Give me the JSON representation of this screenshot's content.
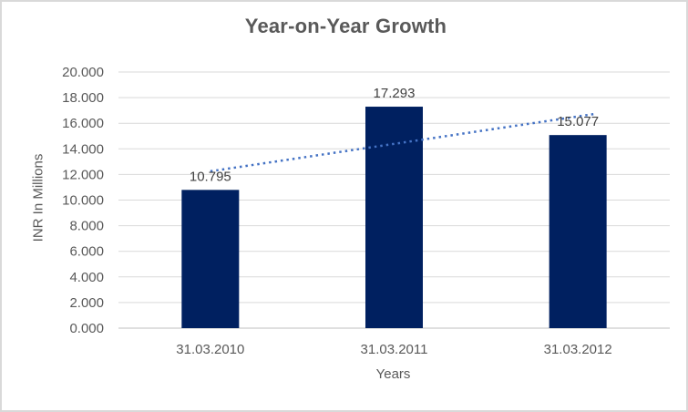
{
  "window": {
    "background": "#FFFFFF",
    "border_color": "#D9D9D9"
  },
  "chart_data": {
    "type": "bar",
    "title": "Year-on-Year Growth",
    "categories": [
      "31.03.2010",
      "31.03.2011",
      "31.03.2012"
    ],
    "values": [
      10.795,
      17.293,
      15.077
    ],
    "data_labels": [
      "10.795",
      "17.293",
      "15.077"
    ],
    "xlabel": "Years",
    "ylabel": "INR In Millions",
    "ylim": [
      0,
      20
    ],
    "ytick_step": 2,
    "ytick_labels": [
      "0.000",
      "2.000",
      "4.000",
      "6.000",
      "8.000",
      "10.000",
      "12.000",
      "14.000",
      "16.000",
      "18.000",
      "20.000"
    ],
    "grid": true,
    "legend": "none",
    "trendline": {
      "type": "linear",
      "line_style": "dotted",
      "start_value": 12.25,
      "end_value": 16.53
    },
    "colors": {
      "bar": "#002060",
      "trendline": "#4472C4",
      "gridline": "#D9D9D9",
      "axis_line": "#BFBFBF",
      "tick_text": "#595959",
      "data_label_text": "#404040",
      "title_text": "#595959"
    }
  }
}
